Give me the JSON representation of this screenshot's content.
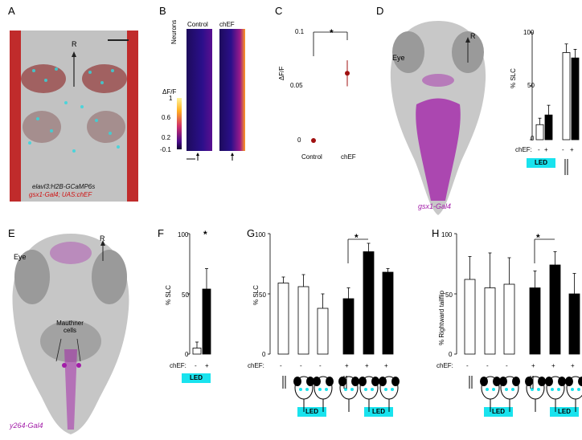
{
  "panels": {
    "A": {
      "letter": "A",
      "arrow_label": "R",
      "line1": "elavl3:H2B-GCaMP6s",
      "line2": "gsx1-Gal4; UAS:chEF"
    },
    "B": {
      "letter": "B",
      "col1": "Control",
      "col2": "chEF",
      "ylabel": "Neurons",
      "cbar_title": "ΔF/F",
      "cbar_ticks": [
        "1",
        "0.6",
        "0.2",
        "-0.1"
      ],
      "cbar_ticks_mid": [
        "0.8",
        "0.4"
      ]
    },
    "C": {
      "letter": "C",
      "ylabel": "ΔF/F",
      "yticks": [
        "0.1",
        "0.05",
        "0"
      ],
      "xcats": [
        "Control",
        "chEF"
      ],
      "sig": "*"
    },
    "D": {
      "letter": "D",
      "eye_label": "Eye",
      "arrow_label": "R",
      "line_label": "gsx1-Gal4",
      "ylabel": "% SLC",
      "yticks": [
        "100",
        "50",
        "0"
      ],
      "chef_label": "chEF:",
      "chef_vals": [
        "-",
        "+",
        "-",
        "+"
      ],
      "led": "LED"
    },
    "E": {
      "letter": "E",
      "eye_label": "Eye",
      "arrow_label": "R",
      "mauthner": "Mauthner cells",
      "line_label": "y264-Gal4"
    },
    "F": {
      "letter": "F",
      "ylabel": "% SLC",
      "yticks": [
        "100",
        "50",
        "0"
      ],
      "chef_label": "chEF:",
      "chef_vals": [
        "-",
        "+"
      ],
      "led": "LED",
      "sig": "*"
    },
    "G": {
      "letter": "G",
      "ylabel": "% SLC",
      "yticks": [
        "100",
        "50",
        "0"
      ],
      "chef_label": "chEF:",
      "chef_vals": [
        "-",
        "-",
        "-",
        "+",
        "+",
        "+"
      ],
      "led": "LED",
      "sig": "*"
    },
    "H": {
      "letter": "H",
      "ylabel": "% Rightward tailflip",
      "yticks": [
        "100",
        "50",
        "0"
      ],
      "chef_label": "chEF:",
      "chef_vals": [
        "-",
        "-",
        "-",
        "+",
        "+",
        "+"
      ],
      "led": "LED",
      "sig": "*"
    }
  },
  "chart_data": [
    {
      "panel": "C",
      "type": "scatter",
      "categories": [
        "Control",
        "chEF"
      ],
      "values": [
        0.0,
        0.062
      ],
      "errors": [
        0.002,
        0.012
      ],
      "ylim": [
        0,
        0.1
      ],
      "ylabel": "ΔF/F",
      "color": "#a01010"
    },
    {
      "panel": "D",
      "type": "bar",
      "categories": [
        "LED -",
        "LED +",
        "Tap -",
        "Tap +"
      ],
      "values": [
        14,
        23,
        81,
        76
      ],
      "errors": [
        6,
        9,
        8,
        8
      ],
      "ylim": [
        0,
        100
      ],
      "ylabel": "% SLC"
    },
    {
      "panel": "F",
      "type": "bar",
      "categories": [
        "-",
        "+"
      ],
      "values": [
        5,
        54
      ],
      "errors": [
        5,
        17
      ],
      "ylim": [
        0,
        100
      ],
      "ylabel": "% SLC"
    },
    {
      "panel": "G",
      "type": "bar",
      "categories": [
        "1",
        "2",
        "3",
        "4",
        "5",
        "6"
      ],
      "values": [
        59,
        56,
        38,
        46,
        85,
        68
      ],
      "errors": [
        5,
        10,
        12,
        9,
        7,
        3
      ],
      "ylim": [
        0,
        100
      ],
      "ylabel": "% SLC"
    },
    {
      "panel": "H",
      "type": "bar",
      "categories": [
        "1",
        "2",
        "3",
        "4",
        "5",
        "6"
      ],
      "values": [
        62,
        55,
        58,
        55,
        74,
        50
      ],
      "errors": [
        19,
        29,
        22,
        14,
        11,
        17
      ],
      "ylim": [
        0,
        100
      ],
      "ylabel": "% Rightward tailflip"
    }
  ],
  "colors": {
    "led": "#19e3ee",
    "magenta": "#a21ca8",
    "red_marker": "#a01010"
  }
}
